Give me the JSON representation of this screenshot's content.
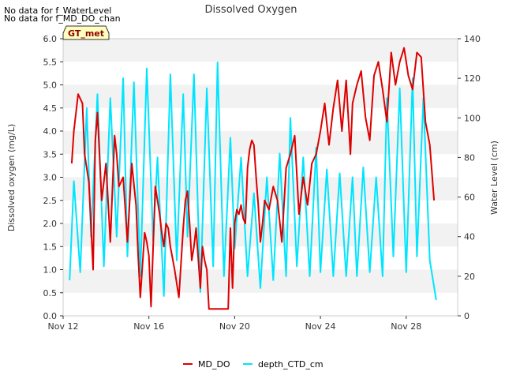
{
  "notices": [
    "No data for f_WaterLevel",
    "No data for f_MD_DO_chan"
  ],
  "badge": "GT_met",
  "chart_data": {
    "type": "line",
    "title": "Dissolved Oxygen",
    "xlabel": "",
    "ylabel": "Dissolved oxygen (mg/L)",
    "y2label": "Water Level (cm)",
    "xlim": [
      0,
      18.4
    ],
    "ylim": [
      0,
      6
    ],
    "y2lim": [
      0,
      140
    ],
    "x_tick_values": [
      0,
      4,
      8,
      12,
      16
    ],
    "x_tick_labels": [
      "Nov 12",
      "Nov 16",
      "Nov 20",
      "Nov 24",
      "Nov 28"
    ],
    "y_ticks": [
      "0.0",
      "0.5",
      "1.0",
      "1.5",
      "2.0",
      "2.5",
      "3.0",
      "3.5",
      "4.0",
      "4.5",
      "5.0",
      "5.5",
      "6.0"
    ],
    "y2_ticks": [
      "0",
      "20",
      "40",
      "60",
      "80",
      "100",
      "120",
      "140"
    ],
    "grid": "horizontal bands",
    "legend_position": "bottom",
    "series": [
      {
        "name": "MD_DO",
        "axis": "left",
        "color": "#dd0000",
        "x": [
          0.4,
          0.5,
          0.6,
          0.7,
          0.9,
          1.0,
          1.2,
          1.4,
          1.5,
          1.6,
          1.8,
          2.0,
          2.2,
          2.4,
          2.5,
          2.6,
          2.8,
          3.0,
          3.2,
          3.4,
          3.5,
          3.6,
          3.8,
          3.9,
          4.0,
          4.1,
          4.3,
          4.4,
          4.5,
          4.6,
          4.7,
          4.8,
          4.9,
          5.0,
          5.2,
          5.4,
          5.6,
          5.7,
          5.8,
          5.9,
          6.0,
          6.1,
          6.2,
          6.4,
          6.5,
          6.6,
          6.7,
          6.8,
          6.9,
          7.0,
          7.2,
          7.4,
          7.6,
          7.7,
          7.8,
          7.9,
          8.0,
          8.1,
          8.2,
          8.3,
          8.4,
          8.5,
          8.6,
          8.7,
          8.8,
          8.9,
          9.0,
          9.1,
          9.2,
          9.3,
          9.4,
          9.6,
          9.8,
          10.0,
          10.2,
          10.4,
          10.6,
          10.8,
          11.0,
          11.2,
          11.4,
          11.6,
          11.8,
          12.0,
          12.2,
          12.4,
          12.6,
          12.8,
          13.0,
          13.2,
          13.4,
          13.5,
          13.7,
          13.9,
          14.1,
          14.3,
          14.5,
          14.7,
          14.9,
          15.1,
          15.3,
          15.5,
          15.7,
          15.9,
          16.1,
          16.3,
          16.5,
          16.7,
          16.9,
          17.1,
          17.3
        ],
        "y": [
          3.3,
          4.0,
          4.4,
          4.8,
          4.6,
          3.5,
          2.9,
          1.0,
          3.8,
          4.4,
          2.5,
          3.3,
          1.6,
          3.9,
          3.5,
          2.8,
          3.0,
          1.6,
          3.3,
          2.4,
          1.3,
          0.4,
          1.8,
          1.6,
          1.3,
          0.2,
          2.8,
          2.5,
          2.2,
          1.8,
          1.5,
          2.0,
          1.9,
          1.5,
          1.0,
          0.4,
          1.9,
          2.5,
          2.7,
          2.0,
          1.2,
          1.5,
          1.9,
          0.6,
          1.5,
          1.2,
          1.0,
          0.15,
          0.15,
          0.15,
          0.15,
          0.15,
          0.15,
          0.15,
          1.9,
          0.6,
          2.0,
          2.3,
          2.2,
          2.4,
          2.1,
          2.0,
          3.2,
          3.6,
          3.8,
          3.7,
          3.0,
          2.4,
          1.6,
          2.0,
          2.5,
          2.3,
          2.8,
          2.5,
          1.6,
          3.2,
          3.5,
          3.9,
          2.2,
          3.0,
          2.4,
          3.3,
          3.5,
          4.0,
          4.6,
          3.7,
          4.5,
          5.1,
          4.0,
          5.1,
          3.5,
          4.6,
          5.0,
          5.3,
          4.3,
          3.8,
          5.2,
          5.5,
          4.9,
          4.2,
          5.7,
          5.0,
          5.5,
          5.8,
          5.2,
          4.9,
          5.7,
          5.6,
          4.2,
          3.7,
          2.5
        ]
      },
      {
        "name": "depth_CTD_cm",
        "axis": "right",
        "color": "#00e5ff",
        "x": [
          0.3,
          0.5,
          0.8,
          1.1,
          1.3,
          1.6,
          1.9,
          2.2,
          2.5,
          2.8,
          3.0,
          3.3,
          3.6,
          3.9,
          4.2,
          4.4,
          4.7,
          5.0,
          5.3,
          5.6,
          5.8,
          6.1,
          6.4,
          6.7,
          7.0,
          7.2,
          7.5,
          7.8,
          8.0,
          8.3,
          8.6,
          8.9,
          9.2,
          9.5,
          9.8,
          10.1,
          10.4,
          10.6,
          10.9,
          11.2,
          11.5,
          11.8,
          12.0,
          12.3,
          12.6,
          12.9,
          13.2,
          13.5,
          13.7,
          14.0,
          14.3,
          14.6,
          14.9,
          15.1,
          15.4,
          15.7,
          16.0,
          16.3,
          16.5,
          16.8,
          17.1,
          17.4
        ],
        "y": [
          18,
          68,
          22,
          105,
          40,
          112,
          25,
          110,
          40,
          120,
          30,
          118,
          20,
          125,
          38,
          80,
          10,
          122,
          28,
          112,
          40,
          122,
          12,
          115,
          25,
          128,
          20,
          90,
          34,
          80,
          20,
          62,
          14,
          70,
          18,
          82,
          20,
          100,
          25,
          80,
          20,
          85,
          22,
          74,
          20,
          72,
          20,
          70,
          20,
          75,
          22,
          70,
          20,
          110,
          30,
          115,
          22,
          120,
          30,
          110,
          28,
          8
        ]
      }
    ]
  }
}
